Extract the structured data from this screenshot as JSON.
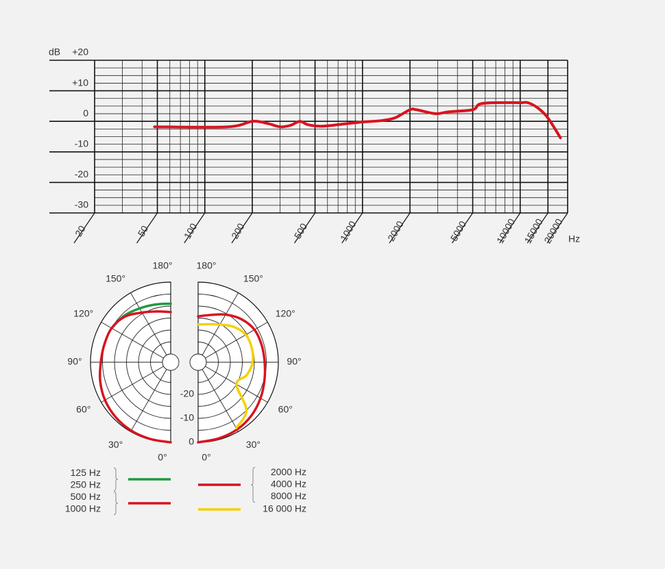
{
  "chart_data": [
    {
      "type": "line",
      "x_label": "Hz",
      "y_label": "dB",
      "xscale": "log",
      "grid": true,
      "xlim": [
        20,
        20000
      ],
      "ylim": [
        -30,
        20
      ],
      "xticks": [
        20,
        50,
        100,
        200,
        500,
        1000,
        2000,
        5000,
        10000,
        15000,
        20000
      ],
      "yticks": [
        {
          "value": 20,
          "label": "+20"
        },
        {
          "value": 10,
          "label": "+10"
        },
        0,
        -10,
        -20,
        -30
      ],
      "x": [
        48,
        140,
        200,
        250,
        300,
        350,
        400,
        450,
        550,
        750,
        1000,
        1300,
        1600,
        2000,
        2200,
        2900,
        3500,
        5000,
        5500,
        6800,
        10000,
        11200,
        13000,
        15000,
        18000
      ],
      "series": [
        {
          "color": "#d7141f",
          "values": [
            -1.8,
            -1.8,
            0,
            -0.7,
            -1.8,
            -1.3,
            0,
            -1.1,
            -1.6,
            -0.9,
            -0.2,
            0.2,
            1.1,
            3.8,
            3.8,
            2.5,
            3.1,
            3.8,
            5.6,
            6.1,
            6.1,
            6.1,
            4.3,
            1.1,
            -5.4
          ]
        }
      ]
    },
    {
      "type": "polar",
      "rlim": [
        -30,
        0
      ],
      "rticks": [
        0,
        -10,
        -20
      ],
      "theta": [
        0,
        15,
        30,
        45,
        60,
        75,
        90,
        105,
        120,
        135,
        150,
        165,
        180
      ],
      "thetaticks": [
        {
          "value": 0,
          "label": "0°"
        },
        {
          "value": 30,
          "label": "30°"
        },
        {
          "value": 60,
          "label": "60°"
        },
        {
          "value": 90,
          "label": "90°"
        },
        {
          "value": 120,
          "label": "120°"
        },
        {
          "value": 150,
          "label": "150°"
        },
        {
          "value": 180,
          "label": "180°"
        }
      ],
      "series": [
        {
          "side": "left",
          "names": [
            "125 Hz",
            "250 Hz"
          ],
          "color": "#1f9a3e",
          "values": [
            null,
            null,
            null,
            null,
            null,
            null,
            null,
            null,
            -5,
            -6,
            -7.5,
            -8.5,
            -9
          ]
        },
        {
          "side": "left",
          "names": [
            "500 Hz",
            "1000 Hz"
          ],
          "color": "#d7141f",
          "values": [
            0,
            -0.3,
            -0.5,
            -1,
            -1.8,
            -3,
            -4.3,
            -4.8,
            -5,
            -6.5,
            -9.5,
            -11.5,
            -12.5
          ]
        },
        {
          "side": "right",
          "names": [
            "2000 Hz",
            "4000 Hz",
            "8000 Hz"
          ],
          "color": "#d7141f",
          "values": [
            0,
            -0.5,
            -1,
            -2,
            -3.4,
            -4.8,
            -5.7,
            -6,
            -6.3,
            -8,
            -10.5,
            -13,
            -14.3
          ]
        },
        {
          "side": "right",
          "names": [
            "16 000 Hz"
          ],
          "color": "#f5d000",
          "values": [
            null,
            null,
            -1.7,
            -5,
            -15,
            -12.5,
            -10.7,
            -10.3,
            -10.5,
            -12.5,
            -15.3,
            -17,
            -17.7
          ]
        }
      ]
    }
  ]
}
